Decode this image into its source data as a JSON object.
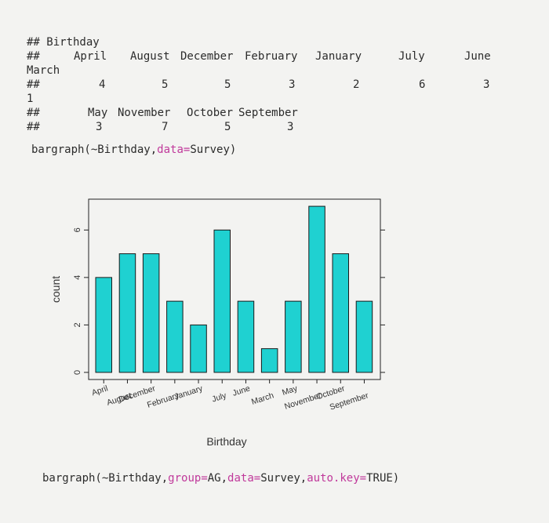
{
  "console": {
    "header": "## Birthday",
    "prefix": "##",
    "line1_names": [
      "April",
      "August",
      "December",
      "February",
      "January",
      "July",
      "June"
    ],
    "line1_wrap": "March",
    "line2_values": [
      "4",
      "5",
      "5",
      "3",
      "2",
      "6",
      "3"
    ],
    "line2_wrap": "1",
    "line3_names": [
      "May",
      "November",
      "October",
      "September"
    ],
    "line4_values": [
      "3",
      "7",
      "5",
      "3"
    ]
  },
  "command1": {
    "func": "bargraph(~Birthday,",
    "arg_name": "data",
    "eq": "=",
    "arg_value": "Survey)"
  },
  "command2": {
    "func": "bargraph(~Birthday,",
    "a1_name": "group",
    "a1_value": "AG,",
    "a2_name": "data",
    "a2_value": "Survey,",
    "a3_name": "auto.key",
    "a3_value": "TRUE)",
    "eq": "="
  },
  "chart_data": {
    "type": "bar",
    "categories": [
      "April",
      "August",
      "December",
      "February",
      "January",
      "July",
      "June",
      "March",
      "May",
      "November",
      "October",
      "September"
    ],
    "values": [
      4,
      5,
      5,
      3,
      2,
      6,
      3,
      1,
      3,
      7,
      5,
      3
    ],
    "xlabel": "Birthday",
    "ylabel": "count",
    "yticks": [
      0,
      2,
      4,
      6
    ],
    "ylim": [
      -0.3,
      7.3
    ],
    "bar_color": "#1fd1d1",
    "bar_edge": "#1a1a1a"
  }
}
